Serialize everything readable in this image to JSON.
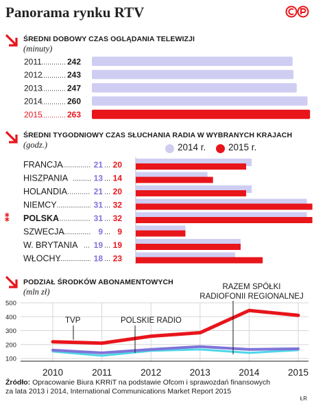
{
  "title": "Panorama rynku RTV",
  "logo_text": "©P",
  "colors": {
    "red": "#e8151b",
    "lavender": "#cfcdf2",
    "purple": "#7f74d9",
    "cyan": "#4ed6e8",
    "grey": "#b9b9b9"
  },
  "section1": {
    "title": "Średni dobowy czas oglądania telewizji",
    "unit": "(minuty)"
  },
  "section2": {
    "title": "Średni tygodniowy czas słuchania radia w wybranych krajach",
    "unit": "(godz.)",
    "legend_2014": "2014 r.",
    "legend_2015": "2015 r."
  },
  "section3": {
    "title": "Podział środków abonamentowych",
    "unit": "(mln zł)",
    "annotations": {
      "tvp": "TVP",
      "pr": "POLSKIE RADIO",
      "rr_line1": "RAZEM SPÓŁKI",
      "rr_line2": "RADIOFONII REGIONALNEJ"
    }
  },
  "source": {
    "label": "Źródło:",
    "text": " Opracowanie Biura KRRiT na podstawie Ofcom i sprawozdań finansowych za lata 2013 i 2014, International Communications Market Report 2015"
  },
  "signature": "ŁR",
  "chart_data": [
    {
      "type": "bar",
      "title": "Średni dobowy czas oglądania telewizji",
      "unit": "(minuty)",
      "categories": [
        "2011",
        "2012",
        "2013",
        "2014",
        "2015"
      ],
      "values": [
        242,
        243,
        247,
        260,
        263
      ],
      "highlight": "2015"
    },
    {
      "type": "bar",
      "title": "Średni tygodniowy czas słuchania radia w wybranych krajach",
      "unit": "(godz.)",
      "categories": [
        "FRANCJA",
        "HISZPANIA",
        "HOLANDIA",
        "NIEMCY",
        "POLSKA",
        "SZWECJA",
        "W. BRYTANIA",
        "WŁOCHY"
      ],
      "highlight": "POLSKA",
      "series": [
        {
          "name": "2014 r.",
          "values": [
            21,
            13,
            21,
            31,
            31,
            9,
            19,
            18
          ]
        },
        {
          "name": "2015 r.",
          "values": [
            20,
            14,
            20,
            32,
            32,
            9,
            19,
            23
          ]
        }
      ]
    },
    {
      "type": "line",
      "title": "Podział środków abonamentowych",
      "unit": "(mln zł)",
      "x": [
        2010,
        2011,
        2012,
        2013,
        2014,
        2015
      ],
      "ylim": [
        100,
        500
      ],
      "yticks": [
        100,
        200,
        300,
        400,
        500
      ],
      "grid": true,
      "series": [
        {
          "name": "TVP",
          "values": [
            220,
            210,
            260,
            285,
            445,
            410
          ]
        },
        {
          "name": "POLSKIE RADIO",
          "values": [
            160,
            140,
            165,
            185,
            165,
            170
          ]
        },
        {
          "name": "RAZEM SPÓŁKI RADIOFONII REGIONALNEJ",
          "values": [
            150,
            120,
            155,
            165,
            140,
            160
          ]
        }
      ]
    }
  ]
}
